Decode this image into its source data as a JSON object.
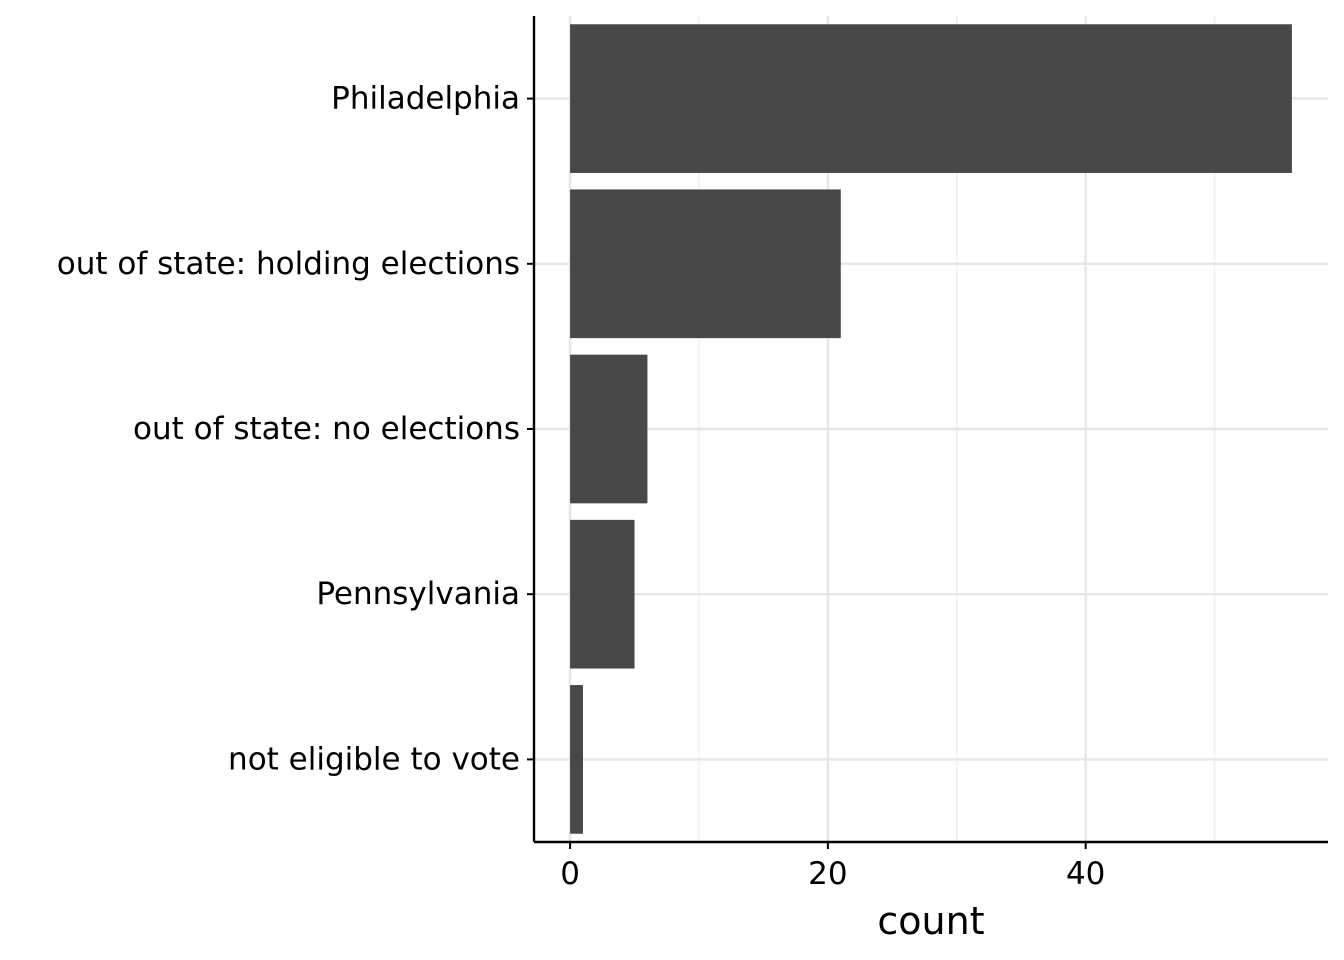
{
  "chart_data": {
    "type": "bar",
    "orientation": "horizontal",
    "categories": [
      "Philadelphia",
      "out of state: holding elections",
      "out of state: no elections",
      "Pennsylvania",
      "not eligible to vote"
    ],
    "values": [
      56,
      21,
      6,
      5,
      1
    ],
    "title": "",
    "xlabel": "count",
    "ylabel": "",
    "xlim": [
      -2.8,
      58.8
    ],
    "x_ticks": [
      0,
      20,
      40
    ],
    "x_tick_labels": [
      "0",
      "20",
      "40"
    ],
    "grid": true,
    "legend": "none",
    "bar_color": "#484848"
  }
}
